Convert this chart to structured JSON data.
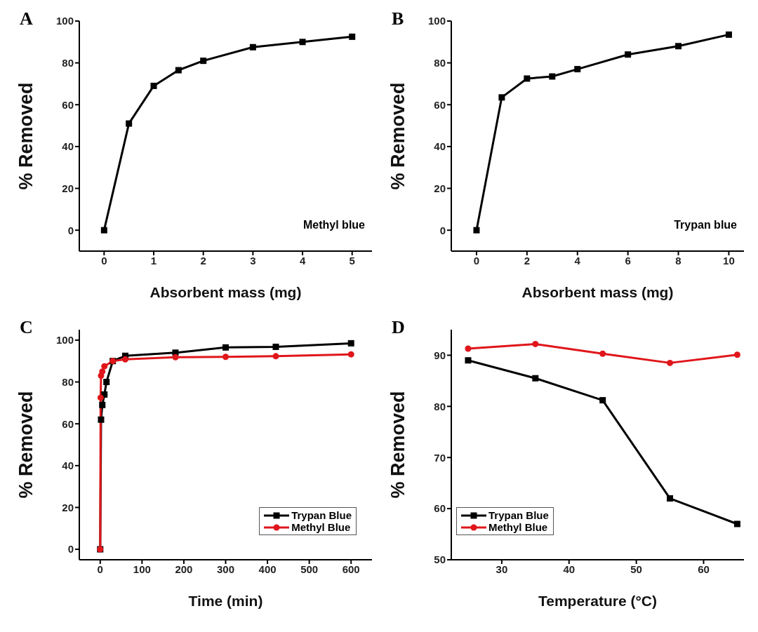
{
  "chart_data": [
    {
      "type": "line",
      "title": "A",
      "xlabel": "Absorbent mass (mg)",
      "ylabel": "% Removed",
      "annotations": [
        "Methyl blue"
      ],
      "xlim": [
        -0.5,
        5.4
      ],
      "xticks": [
        0,
        1,
        2,
        3,
        4,
        5
      ],
      "ylim": [
        -10,
        100
      ],
      "yticks": [
        0,
        20,
        40,
        60,
        80,
        100
      ],
      "marker": "square",
      "legend": false,
      "series": [
        {
          "color": "#000000",
          "x": [
            0,
            0.5,
            1,
            1.5,
            2,
            3,
            4,
            5
          ],
          "values": [
            0,
            51,
            69,
            76.5,
            81,
            87.5,
            90,
            92.5
          ]
        }
      ]
    },
    {
      "type": "line",
      "title": "B",
      "xlabel": "Absorbent mass (mg)",
      "ylabel": "% Removed",
      "annotations": [
        "Trypan blue"
      ],
      "xlim": [
        -1,
        10.6
      ],
      "xticks": [
        0,
        2,
        4,
        6,
        8,
        10
      ],
      "ylim": [
        -10,
        100
      ],
      "yticks": [
        0,
        20,
        40,
        60,
        80,
        100
      ],
      "marker": "square",
      "legend": false,
      "series": [
        {
          "color": "#000000",
          "x": [
            0,
            1,
            2,
            3,
            4,
            6,
            8,
            10
          ],
          "values": [
            0,
            63.5,
            72.5,
            73.5,
            77,
            84,
            88,
            93.5
          ]
        }
      ]
    },
    {
      "type": "line",
      "title": "C",
      "xlabel": "Time (min)",
      "ylabel": "% Removed",
      "xlim": [
        -50,
        650
      ],
      "xticks": [
        0,
        100,
        200,
        300,
        400,
        500,
        600
      ],
      "ylim": [
        -5,
        105
      ],
      "yticks": [
        0,
        20,
        40,
        60,
        80,
        100
      ],
      "legend": "bottom right",
      "series": [
        {
          "name": "Trypan Blue",
          "color": "#000000",
          "marker": "square",
          "x": [
            0,
            2,
            5,
            10,
            15,
            30,
            60,
            180,
            300,
            420,
            600
          ],
          "values": [
            0,
            62,
            69,
            74,
            80,
            90,
            92.5,
            94,
            96.5,
            96.8,
            98.5
          ]
        },
        {
          "name": "Methyl Blue",
          "color": "#e0161b",
          "marker": "circle",
          "x": [
            0,
            1,
            2,
            5,
            10,
            30,
            60,
            180,
            300,
            420,
            600
          ],
          "values": [
            0,
            72.5,
            83,
            85,
            87.5,
            90,
            90.8,
            91.8,
            92,
            92.3,
            93.2
          ]
        }
      ]
    },
    {
      "type": "line",
      "title": "D",
      "xlabel": "Temperature (°C)",
      "ylabel": "% Removed",
      "xlim": [
        22.5,
        66
      ],
      "xticks": [
        30,
        40,
        50,
        60
      ],
      "ylim": [
        50,
        95
      ],
      "yticks": [
        50,
        60,
        70,
        80,
        90
      ],
      "legend": "bottom left",
      "series": [
        {
          "name": "Trypan Blue",
          "color": "#000000",
          "marker": "square",
          "x": [
            25,
            35,
            45,
            55,
            65
          ],
          "values": [
            89,
            85.5,
            81.2,
            62,
            57
          ]
        },
        {
          "name": "Methyl Blue",
          "color": "#e0161b",
          "marker": "circle",
          "x": [
            25,
            35,
            45,
            55,
            65
          ],
          "values": [
            91.3,
            92.2,
            90.3,
            88.5,
            90.1
          ]
        }
      ]
    }
  ]
}
